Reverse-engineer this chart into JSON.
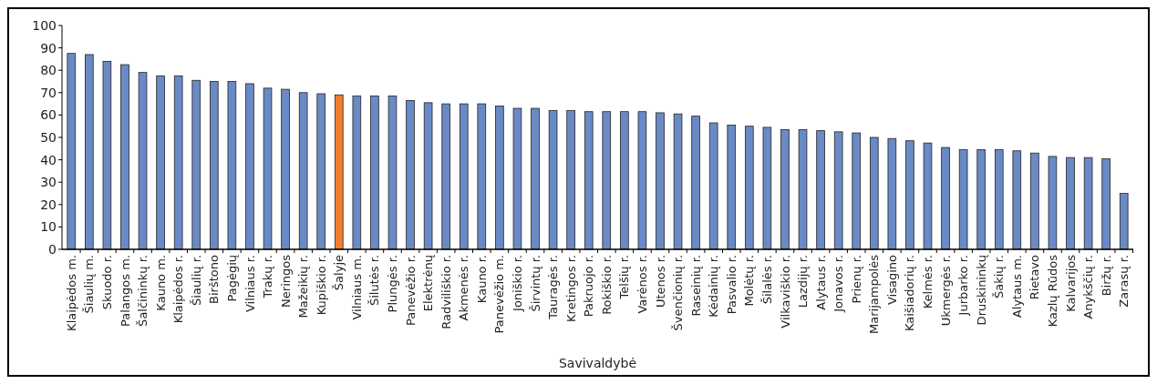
{
  "chart_data": {
    "type": "bar",
    "xlabel": "Savivaldybė",
    "categories": [
      "Klaipėdos m.",
      "Šiaulių m.",
      "Skuodo r.",
      "Palangos m.",
      "Šalčininkų r.",
      "Kauno m.",
      "Klaipėdos r.",
      "Šiaulių r.",
      "Birštono",
      "Pagėgių",
      "Vilniaus r.",
      "Trakų r.",
      "Neringos",
      "Mažeikių r.",
      "Kupiškio r.",
      "Šalyje",
      "Vilniaus m.",
      "Šilutės r.",
      "Plungės r.",
      "Panevėžio r.",
      "Elektrėnų",
      "Radviliškio r.",
      "Akmenės r.",
      "Kauno r.",
      "Panevėžio m.",
      "Joniškio r.",
      "Širvintų r.",
      "Tauragės r.",
      "Kretingos r.",
      "Pakruojo r.",
      "Rokiškio r.",
      "Telšių r.",
      "Varėnos r.",
      "Utenos r.",
      "Švenčionių r.",
      "Raseinių r.",
      "Kėdainių r.",
      "Pasvalio r.",
      "Molėtų r.",
      "Šilalės r.",
      "Vilkaviškio r.",
      "Lazdijų r.",
      "Alytaus r.",
      "Jonavos r.",
      "Prienų r.",
      "Marijampolės",
      "Visagino",
      "Kaišiadorių r.",
      "Kelmės r.",
      "Ukmergės r.",
      "Jurbarko r.",
      "Druskininkų",
      "Šakių r.",
      "Alytaus m.",
      "Rietavo",
      "Kazlų Rūdos",
      "Kalvarijos",
      "Anykščių r.",
      "Biržų r.",
      "Zarasų r."
    ],
    "values": [
      87.5,
      87,
      84,
      82.5,
      79,
      77.5,
      77.5,
      75.5,
      75,
      75,
      74,
      72,
      71.5,
      70,
      69.5,
      69,
      68.5,
      68.5,
      68.5,
      66.5,
      65.5,
      65,
      65,
      65,
      64,
      63,
      63,
      62,
      62,
      61.5,
      61.5,
      61.5,
      61.5,
      61,
      60.5,
      59.5,
      56.5,
      55.5,
      55,
      54.5,
      53.5,
      53.5,
      53,
      52.5,
      52,
      50,
      49.5,
      48.5,
      47.5,
      45.5,
      44.5,
      44.5,
      44.5,
      44,
      43,
      41.5,
      41,
      41,
      40.5,
      25
    ],
    "colors": [
      "#6a8ac6",
      "#6a8ac6",
      "#6a8ac6",
      "#6a8ac6",
      "#6a8ac6",
      "#6a8ac6",
      "#6a8ac6",
      "#6a8ac6",
      "#6a8ac6",
      "#6a8ac6",
      "#6a8ac6",
      "#6a8ac6",
      "#6a8ac6",
      "#6a8ac6",
      "#6a8ac6",
      "#f07f30",
      "#6a8ac6",
      "#6a8ac6",
      "#6a8ac6",
      "#6a8ac6",
      "#6a8ac6",
      "#6a8ac6",
      "#6a8ac6",
      "#6a8ac6",
      "#6a8ac6",
      "#6a8ac6",
      "#6a8ac6",
      "#6a8ac6",
      "#6a8ac6",
      "#6a8ac6",
      "#6a8ac6",
      "#6a8ac6",
      "#6a8ac6",
      "#6a8ac6",
      "#6a8ac6",
      "#6a8ac6",
      "#6a8ac6",
      "#6a8ac6",
      "#6a8ac6",
      "#6a8ac6",
      "#6a8ac6",
      "#6a8ac6",
      "#6a8ac6",
      "#6a8ac6",
      "#6a8ac6",
      "#6a8ac6",
      "#6a8ac6",
      "#6a8ac6",
      "#6a8ac6",
      "#6a8ac6",
      "#6a8ac6",
      "#6a8ac6",
      "#6a8ac6",
      "#6a8ac6",
      "#6a8ac6",
      "#6a8ac6",
      "#6a8ac6",
      "#6a8ac6",
      "#6a8ac6",
      "#6a8ac6"
    ],
    "ylim": [
      0,
      100
    ],
    "yticks": [
      0,
      10,
      20,
      30,
      40,
      50,
      60,
      70,
      80,
      90,
      100
    ]
  }
}
